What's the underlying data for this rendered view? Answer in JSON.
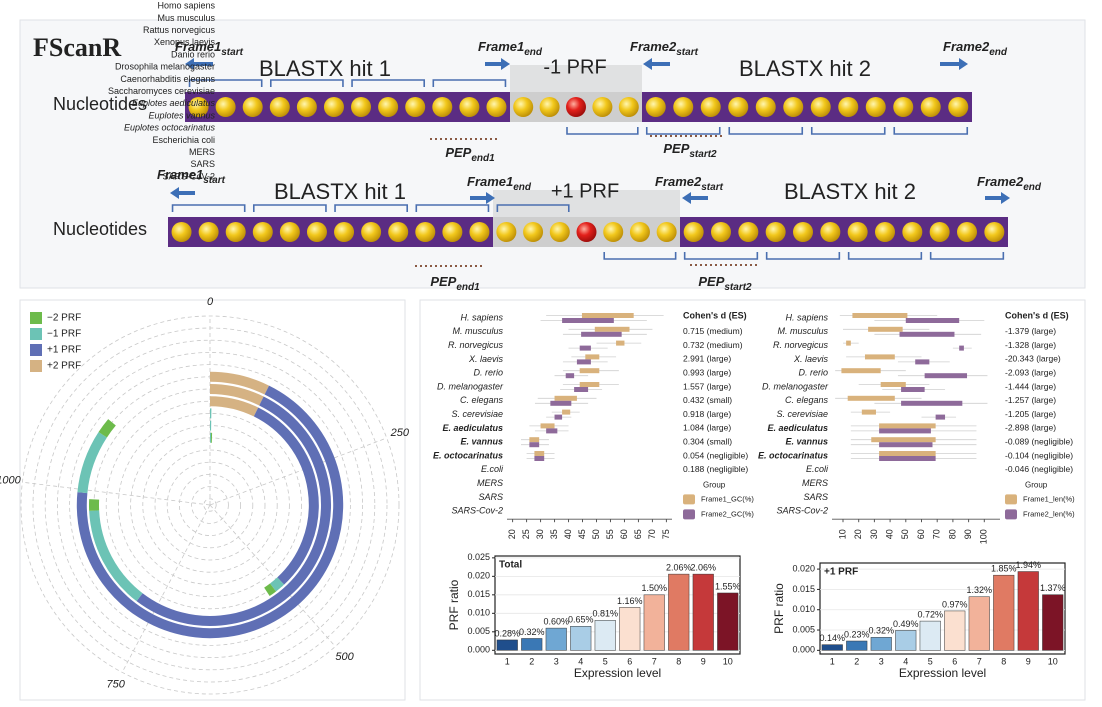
{
  "diagram": {
    "logo": "FScanR",
    "rows": [
      {
        "row_label": "Nucleotides",
        "hit1": "BLASTX hit 1",
        "hit2": "BLASTX hit 2",
        "shift": "-1 PRF",
        "frame1_start": {
          "text": "Frame1",
          "sub": "start"
        },
        "frame1_end": {
          "text": "Frame1",
          "sub": "end"
        },
        "frame2_start": {
          "text": "Frame2",
          "sub": "start"
        },
        "frame2_end": {
          "text": "Frame2",
          "sub": "end"
        },
        "pep_end": {
          "text": "PEP",
          "sub": "end1"
        },
        "pep_start": {
          "text": "PEP",
          "sub": "start2"
        }
      },
      {
        "row_label": "Nucleotides",
        "hit1": "BLASTX hit 1",
        "hit2": "BLASTX hit 2",
        "shift": "+1 PRF",
        "frame1_start": {
          "text": "Frame1",
          "sub": "start"
        },
        "frame1_end": {
          "text": "Frame1",
          "sub": "end"
        },
        "frame2_start": {
          "text": "Frame2",
          "sub": "start"
        },
        "frame2_end": {
          "text": "Frame2",
          "sub": "end"
        },
        "pep_end": {
          "text": "PEP",
          "sub": "end1"
        },
        "pep_start": {
          "text": "PEP",
          "sub": "start2"
        }
      }
    ]
  },
  "chart_data": [
    {
      "type": "radial-bar",
      "categories": [
        "SARS-CoV-2",
        "SARS",
        "MERS",
        "Escherichia coli",
        "Euplotes octocarinatus",
        "Euplotes vannus",
        "Euplotes aediculatus",
        "Saccharomyces cerevisiae",
        "Caenorhabditis elegans",
        "Drosophila melanogaster",
        "Danio rerio",
        "Xenopus laevis",
        "Rattus norvegicus",
        "Mus musculus",
        "Homo sapiens"
      ],
      "category_colors": [
        "#222222",
        "#222222",
        "#222222",
        "#222222",
        "#c0572e",
        "#c0572e",
        "#c0572e",
        "#222222",
        "#222222",
        "#222222",
        "#222222",
        "#222222",
        "#222222",
        "#222222",
        "#222222"
      ],
      "series": [
        {
          "name": "−2 PRF",
          "color": "#6dbb4b",
          "values": [
            0,
            0,
            0,
            0,
            25,
            20,
            15,
            0,
            0,
            3,
            0,
            0,
            0,
            0,
            0
          ]
        },
        {
          "name": "−1 PRF",
          "color": "#6cc3b5",
          "values": [
            0,
            0,
            0,
            0,
            100,
            180,
            20,
            3,
            3,
            3,
            0,
            0,
            0,
            0,
            0
          ]
        },
        {
          "name": "+1 PRF",
          "color": "#5f6fb5",
          "values": [
            0,
            0,
            0,
            0,
            900,
            690,
            400,
            0,
            0,
            0,
            0,
            0,
            0,
            0,
            0
          ]
        },
        {
          "name": "+2 PRF",
          "color": "#d5b283",
          "values": [
            0,
            0,
            0,
            0,
            95,
            95,
            95,
            0,
            0,
            0,
            0,
            0,
            0,
            0,
            0
          ]
        }
      ],
      "alim": [
        0,
        1300
      ],
      "aticks": [
        0,
        250,
        500,
        750,
        1000
      ]
    },
    {
      "type": "box",
      "categories": [
        "H. sapiens",
        "M. musculus",
        "R. norvegicus",
        "X. laevis",
        "D. rerio",
        "D. melanogaster",
        "C. elegans",
        "S. cerevisiae",
        "E. aediculatus",
        "E. vannus",
        "E. octocarinatus",
        "E.coli",
        "MERS",
        "SARS",
        "SARS-Cov-2"
      ],
      "category_font_weight": [
        "normal",
        "normal",
        "normal",
        "normal",
        "normal",
        "normal",
        "normal",
        "normal",
        "bold",
        "bold",
        "bold",
        "normal",
        "normal",
        "normal",
        "normal"
      ],
      "series": [
        {
          "name": "Frame1_GC(%)",
          "color": "#d9b27c",
          "low": [
            32,
            40,
            50,
            41,
            38,
            38,
            29,
            34,
            26,
            23,
            25,
            null,
            null,
            null,
            null
          ],
          "q1": [
            44.8,
            49.4,
            57,
            46,
            44,
            44,
            35,
            37.7,
            30,
            26,
            27.8,
            null,
            null,
            null,
            null
          ],
          "q3": [
            63.3,
            61.8,
            60,
            51,
            51,
            51,
            43,
            40.6,
            35,
            29.5,
            31.3,
            null,
            null,
            null,
            null
          ],
          "high": [
            74,
            70,
            66,
            57,
            58,
            58,
            50,
            44,
            40,
            33,
            35,
            null,
            null,
            null,
            null
          ]
        },
        {
          "name": "Frame2_GC(%)",
          "color": "#8e6a9a",
          "low": [
            30,
            38,
            40,
            38,
            35,
            37,
            28,
            32,
            28,
            23,
            25,
            null,
            null,
            null,
            null
          ],
          "q1": [
            37.7,
            44.5,
            44,
            43,
            39,
            42,
            33.5,
            35,
            32,
            26,
            27.8,
            null,
            null,
            null,
            null
          ],
          "q3": [
            56.2,
            59,
            48,
            48,
            42,
            47,
            41,
            37.7,
            36,
            29.5,
            31.3,
            null,
            null,
            null,
            null
          ],
          "high": [
            68,
            68,
            54,
            54,
            47,
            52,
            47,
            41,
            40,
            33,
            35,
            null,
            null,
            null,
            null
          ]
        }
      ],
      "xlim": [
        18,
        77
      ],
      "xticks": [
        20,
        25,
        30,
        35,
        40,
        45,
        50,
        55,
        60,
        65,
        70,
        75
      ],
      "annotation_title": "Cohen's d (ES)",
      "annotations": [
        "0.715 (medium)",
        "0.732 (medium)",
        "2.991 (large)",
        "0.993 (large)",
        "1.557 (large)",
        "0.432 (small)",
        "0.918 (large)",
        "1.084 (large)",
        "0.304 (small)",
        "0.054 (negligible)",
        "0.188 (negligible)"
      ],
      "legend_title": "Group"
    },
    {
      "type": "box",
      "categories": [
        "H. sapiens",
        "M. musculus",
        "R. norvegicus",
        "X. laevis",
        "D. rerio",
        "D. melanogaster",
        "C. elegans",
        "S. cerevisiae",
        "E. aediculatus",
        "E. vannus",
        "E. octocarinatus",
        "E.coli",
        "MERS",
        "SARS",
        "SARS-Cov-2"
      ],
      "category_font_weight": [
        "normal",
        "normal",
        "normal",
        "normal",
        "normal",
        "normal",
        "normal",
        "normal",
        "bold",
        "bold",
        "bold",
        "normal",
        "normal",
        "normal",
        "normal"
      ],
      "series": [
        {
          "name": "Frame1_len(%)",
          "color": "#d9b27c",
          "low": [
            8,
            10,
            10,
            12,
            5,
            20,
            5,
            15,
            15,
            15,
            15,
            null,
            null,
            null,
            null
          ],
          "q1": [
            16,
            26,
            12,
            24,
            9,
            34,
            13,
            22,
            33,
            28,
            33,
            null,
            null,
            null,
            null
          ],
          "q3": [
            51,
            48,
            15,
            43,
            34,
            50,
            43,
            31,
            69,
            69,
            69,
            null,
            null,
            null,
            null
          ],
          "high": [
            70,
            65,
            20,
            60,
            50,
            65,
            60,
            40,
            95,
            95,
            95,
            null,
            null,
            null,
            null
          ]
        },
        {
          "name": "Frame2_len(%)",
          "color": "#8e6a9a",
          "low": [
            30,
            30,
            80,
            45,
            45,
            35,
            30,
            60,
            15,
            15,
            15,
            null,
            null,
            null,
            null
          ],
          "q1": [
            50,
            46,
            84,
            56,
            62,
            47,
            47,
            69,
            33,
            33,
            33,
            null,
            null,
            null,
            null
          ],
          "q3": [
            84,
            81,
            87,
            65,
            89,
            62,
            86,
            75,
            66,
            67,
            69,
            null,
            null,
            null,
            null
          ],
          "high": [
            100,
            98,
            92,
            78,
            102,
            75,
            102,
            82,
            95,
            95,
            95,
            null,
            null,
            null,
            null
          ]
        }
      ],
      "xlim": [
        3,
        110
      ],
      "xticks": [
        10,
        20,
        30,
        40,
        50,
        60,
        70,
        80,
        90,
        100
      ],
      "annotation_title": "Cohen's d (ES)",
      "annotations": [
        "-1.379 (large)",
        "-1.328 (large)",
        "-20.343 (large)",
        "-2.093 (large)",
        "-1.444 (large)",
        "-1.257 (large)",
        "-1.205 (large)",
        "-2.898 (large)",
        "-0.089 (negligible)",
        "-0.104 (negligible)",
        "-0.046 (negligible)"
      ],
      "legend_title": "Group"
    },
    {
      "type": "bar",
      "title": "Total",
      "x_label": "Expression level",
      "y_label": "PRF ratio",
      "categories": [
        1,
        2,
        3,
        4,
        5,
        6,
        7,
        8,
        9,
        10
      ],
      "values": [
        0.0028,
        0.0032,
        0.006,
        0.0065,
        0.0081,
        0.0116,
        0.015,
        0.0206,
        0.0206,
        0.0155
      ],
      "value_labels": [
        "0.28%",
        "0.32%",
        "0.60%",
        "0.65%",
        "0.81%",
        "1.16%",
        "1.50%",
        "2.06%",
        "2.06%",
        "1.55%"
      ],
      "colors": [
        "#1f4e8c",
        "#3a78b5",
        "#6fa7d3",
        "#a9cde6",
        "#dceaf3",
        "#fbe0d0",
        "#f2b29a",
        "#e07a63",
        "#c5393a",
        "#7c1426"
      ],
      "ylim": [
        -0.001,
        0.0255
      ],
      "yticks": [
        {
          "value": 0,
          "label": "0.000"
        },
        0.005,
        {
          "value": 0.01,
          "label": "0.010"
        },
        0.015,
        {
          "value": 0.02,
          "label": "0.020"
        },
        0.025
      ]
    },
    {
      "type": "bar",
      "title": "+1 PRF",
      "x_label": "Expression level",
      "y_label": "PRF ratio",
      "categories": [
        1,
        2,
        3,
        4,
        5,
        6,
        7,
        8,
        9,
        10
      ],
      "values": [
        0.0014,
        0.0023,
        0.0032,
        0.0049,
        0.0072,
        0.0097,
        0.0132,
        0.0185,
        0.0194,
        0.0137
      ],
      "value_labels": [
        "0.14%",
        "0.23%",
        "0.32%",
        "0.49%",
        "0.72%",
        "0.97%",
        "1.32%",
        "1.85%",
        "1.94%",
        "1.37%"
      ],
      "colors": [
        "#1f4e8c",
        "#3a78b5",
        "#6fa7d3",
        "#a9cde6",
        "#dceaf3",
        "#fbe0d0",
        "#f2b29a",
        "#e07a63",
        "#c5393a",
        "#7c1426"
      ],
      "ylim": [
        -0.0009,
        0.0215
      ],
      "yticks": [
        {
          "value": 0,
          "label": "0.000"
        },
        0.005,
        {
          "value": 0.01,
          "label": "0.010"
        },
        0.015,
        {
          "value": 0.02,
          "label": "0.020"
        }
      ]
    }
  ]
}
